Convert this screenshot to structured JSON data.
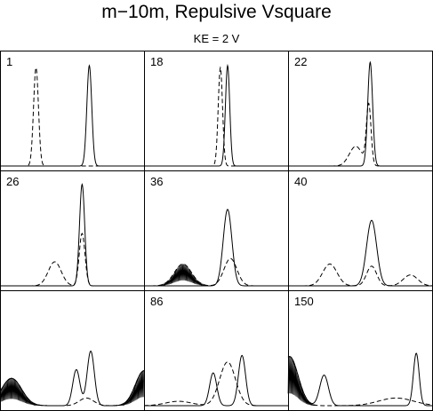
{
  "chart_data": {
    "type": "line",
    "title": "m−10m,  Repulsive  Vsquare",
    "subtitle": "KE = 2 V",
    "grid": {
      "rows": 3,
      "cols": 3
    },
    "x_domain": [
      0,
      100
    ],
    "y_domain": [
      0,
      1
    ],
    "panels": [
      {
        "label": "1",
        "solid": [
          {
            "c": 62,
            "w": 1.7,
            "a": 0.92
          }
        ],
        "dashed": [
          {
            "c": 25,
            "w": 1.7,
            "a": 0.9
          }
        ],
        "noise": []
      },
      {
        "label": "18",
        "solid": [
          {
            "c": 58,
            "w": 1.5,
            "a": 0.92
          }
        ],
        "dashed": [
          {
            "c": 53,
            "w": 1.5,
            "a": 0.9
          }
        ],
        "noise": []
      },
      {
        "label": "22",
        "solid": [
          {
            "c": 57,
            "w": 1.7,
            "a": 0.95
          }
        ],
        "dashed": [
          {
            "c": 56,
            "w": 1.6,
            "a": 0.55
          },
          {
            "c": 47,
            "w": 4.5,
            "a": 0.18
          }
        ],
        "noise": []
      },
      {
        "label": "26",
        "solid": [
          {
            "c": 57,
            "w": 1.8,
            "a": 0.93
          }
        ],
        "dashed": [
          {
            "c": 57,
            "w": 2.0,
            "a": 0.48
          },
          {
            "c": 38,
            "w": 4.5,
            "a": 0.22
          }
        ],
        "noise": []
      },
      {
        "label": "36",
        "solid": [
          {
            "c": 58,
            "w": 3.0,
            "a": 0.7
          }
        ],
        "dashed": [
          {
            "c": 60,
            "w": 4.5,
            "a": 0.25
          },
          {
            "c": 27,
            "w": 6.0,
            "a": 0.2
          }
        ],
        "noise": [
          {
            "c": 27,
            "w": 6.0,
            "a": 0.2
          }
        ]
      },
      {
        "label": "40",
        "solid": [
          {
            "c": 58,
            "w": 3.5,
            "a": 0.6
          }
        ],
        "dashed": [
          {
            "c": 58,
            "w": 3.5,
            "a": 0.18
          },
          {
            "c": 29,
            "w": 5.0,
            "a": 0.2
          },
          {
            "c": 85,
            "w": 5.0,
            "a": 0.1
          }
        ],
        "noise": []
      },
      {
        "label": "",
        "solid": [
          {
            "c": 63,
            "w": 2.5,
            "a": 0.5
          },
          {
            "c": 53,
            "w": 2.5,
            "a": 0.33
          },
          {
            "c": 8,
            "w": 7.0,
            "a": 0.25
          },
          {
            "c": 100,
            "w": 6.0,
            "a": 0.32
          }
        ],
        "dashed": [
          {
            "c": 60,
            "w": 5.0,
            "a": 0.07
          },
          {
            "c": 8,
            "w": 7.0,
            "a": 0.25
          },
          {
            "c": 100,
            "w": 6.0,
            "a": 0.32
          }
        ],
        "noise": [
          {
            "c": 8,
            "w": 7.0,
            "a": 0.25
          },
          {
            "c": 100,
            "w": 6.0,
            "a": 0.32
          }
        ]
      },
      {
        "label": "86",
        "solid": [
          {
            "c": 68,
            "w": 2.5,
            "a": 0.46
          },
          {
            "c": 48,
            "w": 2.5,
            "a": 0.3
          }
        ],
        "dashed": [
          {
            "c": 58,
            "w": 5.5,
            "a": 0.4
          },
          {
            "c": 24,
            "w": 9.0,
            "a": 0.04
          }
        ],
        "noise": []
      },
      {
        "label": "150",
        "solid": [
          {
            "c": 89,
            "w": 2.0,
            "a": 0.48
          },
          {
            "c": 25,
            "w": 3.0,
            "a": 0.28
          },
          {
            "c": 1,
            "w": 6.0,
            "a": 0.45
          }
        ],
        "dashed": [
          {
            "c": 1,
            "w": 6.0,
            "a": 0.45
          },
          {
            "c": 75,
            "w": 12.0,
            "a": 0.07
          }
        ],
        "noise": [
          {
            "c": 1,
            "w": 6.0,
            "a": 0.45
          }
        ]
      }
    ]
  }
}
